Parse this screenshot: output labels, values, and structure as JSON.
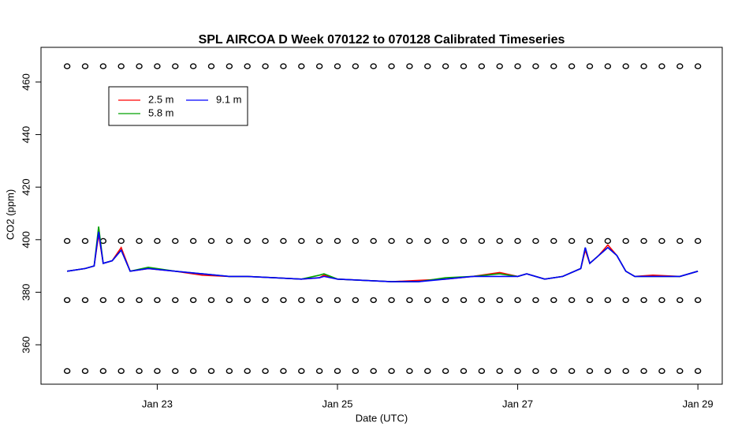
{
  "chart_data": {
    "type": "line",
    "title": "SPL AIRCOA D  Week 070122 to 070128  Calibrated Timeseries",
    "xlabel": "Date (UTC)",
    "ylabel": "CO2 (ppm)",
    "xlim": [
      21.71,
      29.27
    ],
    "ylim": [
      345,
      473.2
    ],
    "xticks": [
      {
        "value": 23,
        "label": "Jan 23"
      },
      {
        "value": 25,
        "label": "Jan 25"
      },
      {
        "value": 27,
        "label": "Jan 27"
      },
      {
        "value": 29,
        "label": "Jan 29"
      }
    ],
    "yticks": [
      360,
      380,
      400,
      420,
      440,
      460
    ],
    "legend": "top-left",
    "x": [
      22.0,
      22.2,
      22.3,
      22.35,
      22.4,
      22.5,
      22.6,
      22.7,
      22.9,
      23.2,
      23.5,
      23.8,
      24.0,
      24.3,
      24.6,
      24.8,
      24.85,
      25.0,
      25.3,
      25.6,
      25.9,
      26.2,
      26.5,
      26.8,
      27.0,
      27.1,
      27.3,
      27.5,
      27.7,
      27.75,
      27.8,
      27.9,
      28.0,
      28.1,
      28.2,
      28.3,
      28.5,
      28.8,
      29.0
    ],
    "series": [
      {
        "name": "2.5 m",
        "color": "#ff0000",
        "values": [
          388,
          389,
          390,
          402,
          391,
          392,
          397,
          388,
          389,
          388,
          386.5,
          386,
          386,
          385.5,
          385,
          385.5,
          386.5,
          385,
          384.5,
          384,
          384.5,
          385,
          386,
          387.5,
          386,
          387,
          385,
          386,
          389,
          396,
          391,
          394,
          398,
          394,
          388,
          386,
          386.5,
          386,
          388
        ]
      },
      {
        "name": "5.8 m",
        "color": "#00a000",
        "values": [
          388,
          389,
          390,
          405,
          391,
          392,
          396,
          388,
          389.5,
          388,
          387,
          386,
          386,
          385.5,
          385,
          386.5,
          387,
          385,
          384.5,
          384,
          384,
          385.5,
          386,
          387,
          386,
          387,
          385,
          386,
          389,
          397,
          391,
          394,
          397,
          394,
          388,
          386,
          386,
          386,
          388
        ]
      },
      {
        "name": "9.1 m",
        "color": "#0000ff",
        "values": [
          388,
          389,
          390,
          403,
          391,
          392,
          396,
          388,
          389,
          388,
          387,
          386,
          386,
          385.5,
          385,
          385.5,
          386,
          385,
          384.5,
          384,
          384,
          385,
          386,
          386,
          386,
          387,
          385,
          386,
          389,
          397,
          391,
          394,
          397,
          394,
          388,
          386,
          386,
          386,
          388
        ]
      },
      {
        "style": "points",
        "color": "#000000",
        "x": [
          22,
          22.2,
          22.4,
          22.6,
          22.8,
          23,
          23.2,
          23.4,
          23.6,
          23.8,
          24,
          24.2,
          24.4,
          24.6,
          24.8,
          25,
          25.2,
          25.4,
          25.6,
          25.8,
          26,
          26.2,
          26.4,
          26.6,
          26.8,
          27,
          27.2,
          27.4,
          27.6,
          27.8,
          28,
          28.2,
          28.4,
          28.6,
          28.8,
          29
        ],
        "values": [
          466,
          466,
          466,
          466,
          466,
          466,
          466,
          466,
          466,
          466,
          466,
          466,
          466,
          466,
          466,
          466,
          466,
          466,
          466,
          466,
          466,
          466,
          466,
          466,
          466,
          466,
          466,
          466,
          466,
          466,
          466,
          466,
          466,
          466,
          466,
          466
        ]
      },
      {
        "style": "points",
        "color": "#000000",
        "x": [
          22,
          22.2,
          22.4,
          22.6,
          22.8,
          23,
          23.2,
          23.4,
          23.6,
          23.8,
          24,
          24.2,
          24.4,
          24.6,
          24.8,
          25,
          25.2,
          25.4,
          25.6,
          25.8,
          26,
          26.2,
          26.4,
          26.6,
          26.8,
          27,
          27.2,
          27.4,
          27.6,
          27.8,
          28,
          28.2,
          28.4,
          28.6,
          28.8,
          29
        ],
        "values": [
          399.5,
          399.5,
          399.5,
          399.5,
          399.5,
          399.5,
          399.5,
          399.5,
          399.5,
          399.5,
          399.5,
          399.5,
          399.5,
          399.5,
          399.5,
          399.5,
          399.5,
          399.5,
          399.5,
          399.5,
          399.5,
          399.5,
          399.5,
          399.5,
          399.5,
          399.5,
          399.5,
          399.5,
          399.5,
          399.5,
          399.5,
          399.5,
          399.5,
          399.5,
          399.5,
          399.5
        ]
      },
      {
        "style": "points",
        "color": "#000000",
        "x": [
          22,
          22.2,
          22.4,
          22.6,
          22.8,
          23,
          23.2,
          23.4,
          23.6,
          23.8,
          24,
          24.2,
          24.4,
          24.6,
          24.8,
          25,
          25.2,
          25.4,
          25.6,
          25.8,
          26,
          26.2,
          26.4,
          26.6,
          26.8,
          27,
          27.2,
          27.4,
          27.6,
          27.8,
          28,
          28.2,
          28.4,
          28.6,
          28.8,
          29
        ],
        "values": [
          377,
          377,
          377,
          377,
          377,
          377,
          377,
          377,
          377,
          377,
          377,
          377,
          377,
          377,
          377,
          377,
          377,
          377,
          377,
          377,
          377,
          377,
          377,
          377,
          377,
          377,
          377,
          377,
          377,
          377,
          377,
          377,
          377,
          377,
          377,
          377
        ]
      },
      {
        "style": "points",
        "color": "#000000",
        "x": [
          22,
          22.2,
          22.4,
          22.6,
          22.8,
          23,
          23.2,
          23.4,
          23.6,
          23.8,
          24,
          24.2,
          24.4,
          24.6,
          24.8,
          25,
          25.2,
          25.4,
          25.6,
          25.8,
          26,
          26.2,
          26.4,
          26.6,
          26.8,
          27,
          27.2,
          27.4,
          27.6,
          27.8,
          28,
          28.2,
          28.4,
          28.6,
          28.8,
          29
        ],
        "values": [
          350,
          350,
          350,
          350,
          350,
          350,
          350,
          350,
          350,
          350,
          350,
          350,
          350,
          350,
          350,
          350,
          350,
          350,
          350,
          350,
          350,
          350,
          350,
          350,
          350,
          350,
          350,
          350,
          350,
          350,
          350,
          350,
          350,
          350,
          350,
          350
        ]
      }
    ]
  }
}
